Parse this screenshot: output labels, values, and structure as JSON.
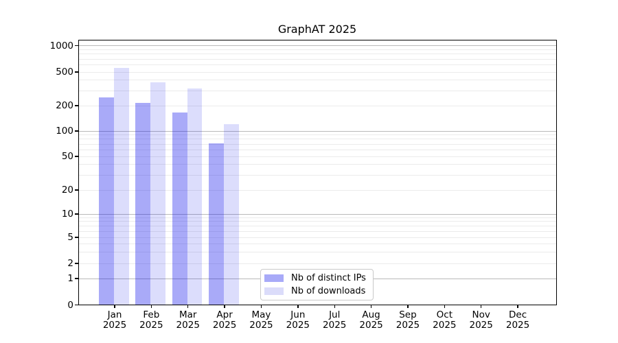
{
  "chart_data": {
    "type": "bar",
    "title": "GraphAT 2025",
    "categories": [
      "Jan",
      "Feb",
      "Mar",
      "Apr",
      "May",
      "Jun",
      "Jul",
      "Aug",
      "Sep",
      "Oct",
      "Nov",
      "Dec"
    ],
    "category_year": "2025",
    "series": [
      {
        "name": "Nb of distinct IPs",
        "color": "#a8aaf8",
        "fill": "rgba(10,12,235,0.35)",
        "values": [
          250,
          215,
          165,
          72,
          null,
          null,
          null,
          null,
          null,
          null,
          null,
          null
        ]
      },
      {
        "name": "Nb of downloads",
        "color": "#dbdcfa",
        "fill": "rgba(10,12,235,0.14)",
        "values": [
          560,
          375,
          320,
          120,
          null,
          null,
          null,
          null,
          null,
          null,
          null,
          null
        ]
      }
    ],
    "xlabel": "",
    "ylabel": "",
    "ylim": [
      0,
      1000
    ],
    "y_axis": {
      "scale": "log-like with zero baseline (symlog)",
      "tick_labels": [
        "1000",
        "500",
        "200",
        "100",
        "50",
        "20",
        "10",
        "5",
        "2",
        "1",
        "0"
      ],
      "tick_values": [
        1000,
        500,
        200,
        100,
        50,
        20,
        10,
        5,
        2,
        1,
        0
      ],
      "major_grid_values": [
        1,
        10,
        100,
        1000
      ],
      "minor_grid_values": [
        2,
        3,
        4,
        5,
        6,
        7,
        8,
        9,
        20,
        30,
        40,
        50,
        60,
        70,
        80,
        90,
        200,
        300,
        400,
        500,
        600,
        700,
        800,
        900
      ]
    },
    "legend": {
      "entries": [
        "Nb of distinct IPs",
        "Nb of downloads"
      ],
      "position": "bottom-center-inside"
    },
    "grid": true,
    "colors": {
      "minor_grid": "#ebebeb",
      "major_grid": "#b9b9b9",
      "spine": "#000000",
      "text": "#000000",
      "background": "#ffffff"
    }
  }
}
